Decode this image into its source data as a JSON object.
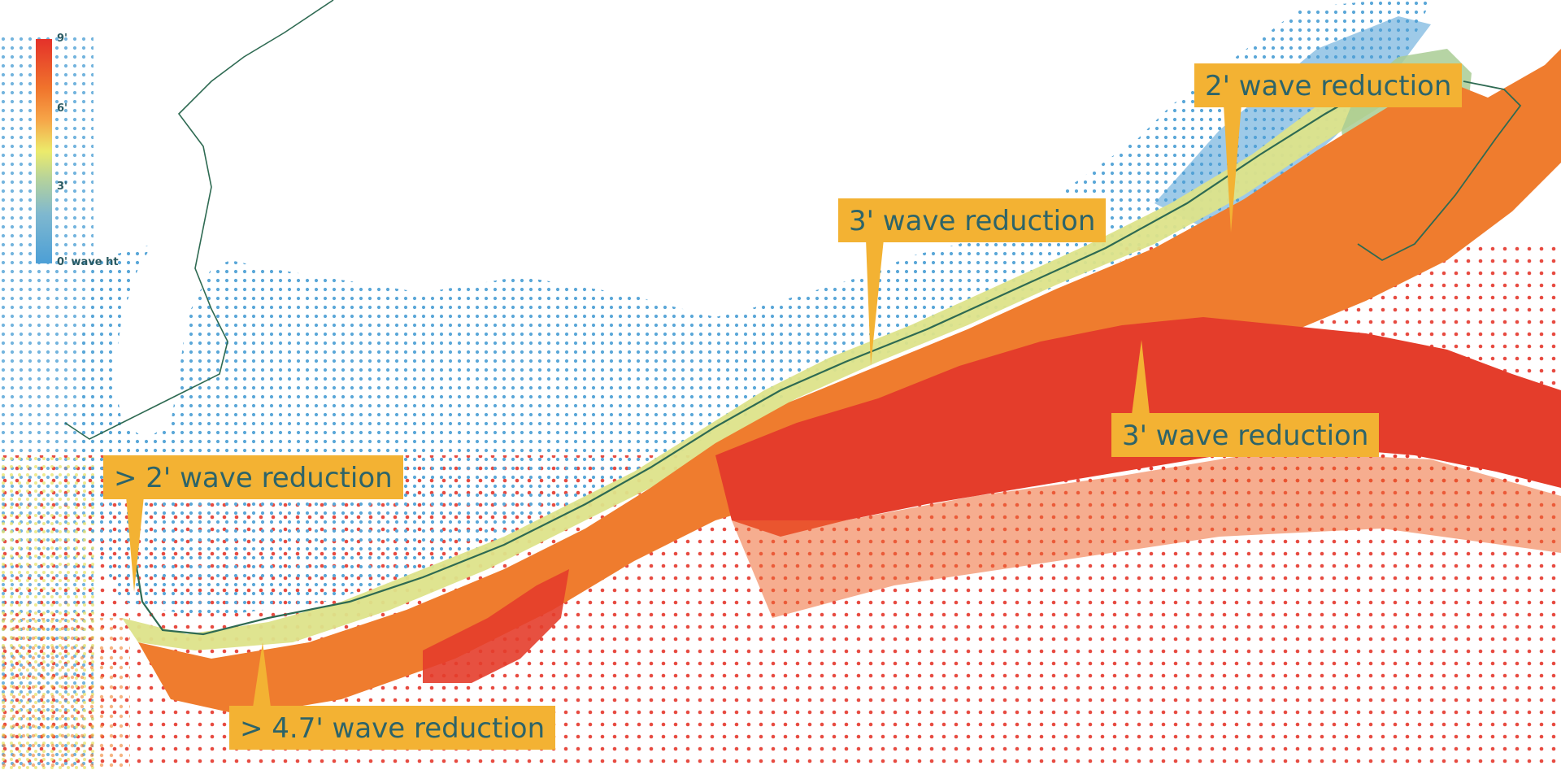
{
  "colors": {
    "background": "#ffffff",
    "high": "#e4312a",
    "mid_high": "#f0742c",
    "mid": "#eceb6b",
    "low": "#4c9fd6",
    "shoreline": "#2e6a52",
    "callout_fill": "#f3b233",
    "callout_text": "#2d6469"
  },
  "legend": {
    "labels": [
      "9'",
      "6'",
      "3'",
      "0' wave ht"
    ]
  },
  "callouts": [
    {
      "id": "c1",
      "text": "2' wave reduction"
    },
    {
      "id": "c2",
      "text": "3' wave reduction"
    },
    {
      "id": "c3",
      "text": "3' wave reduction"
    },
    {
      "id": "c4",
      "text": "> 2' wave reduction"
    },
    {
      "id": "c5",
      "text": "> 4.7' wave reduction"
    }
  ]
}
